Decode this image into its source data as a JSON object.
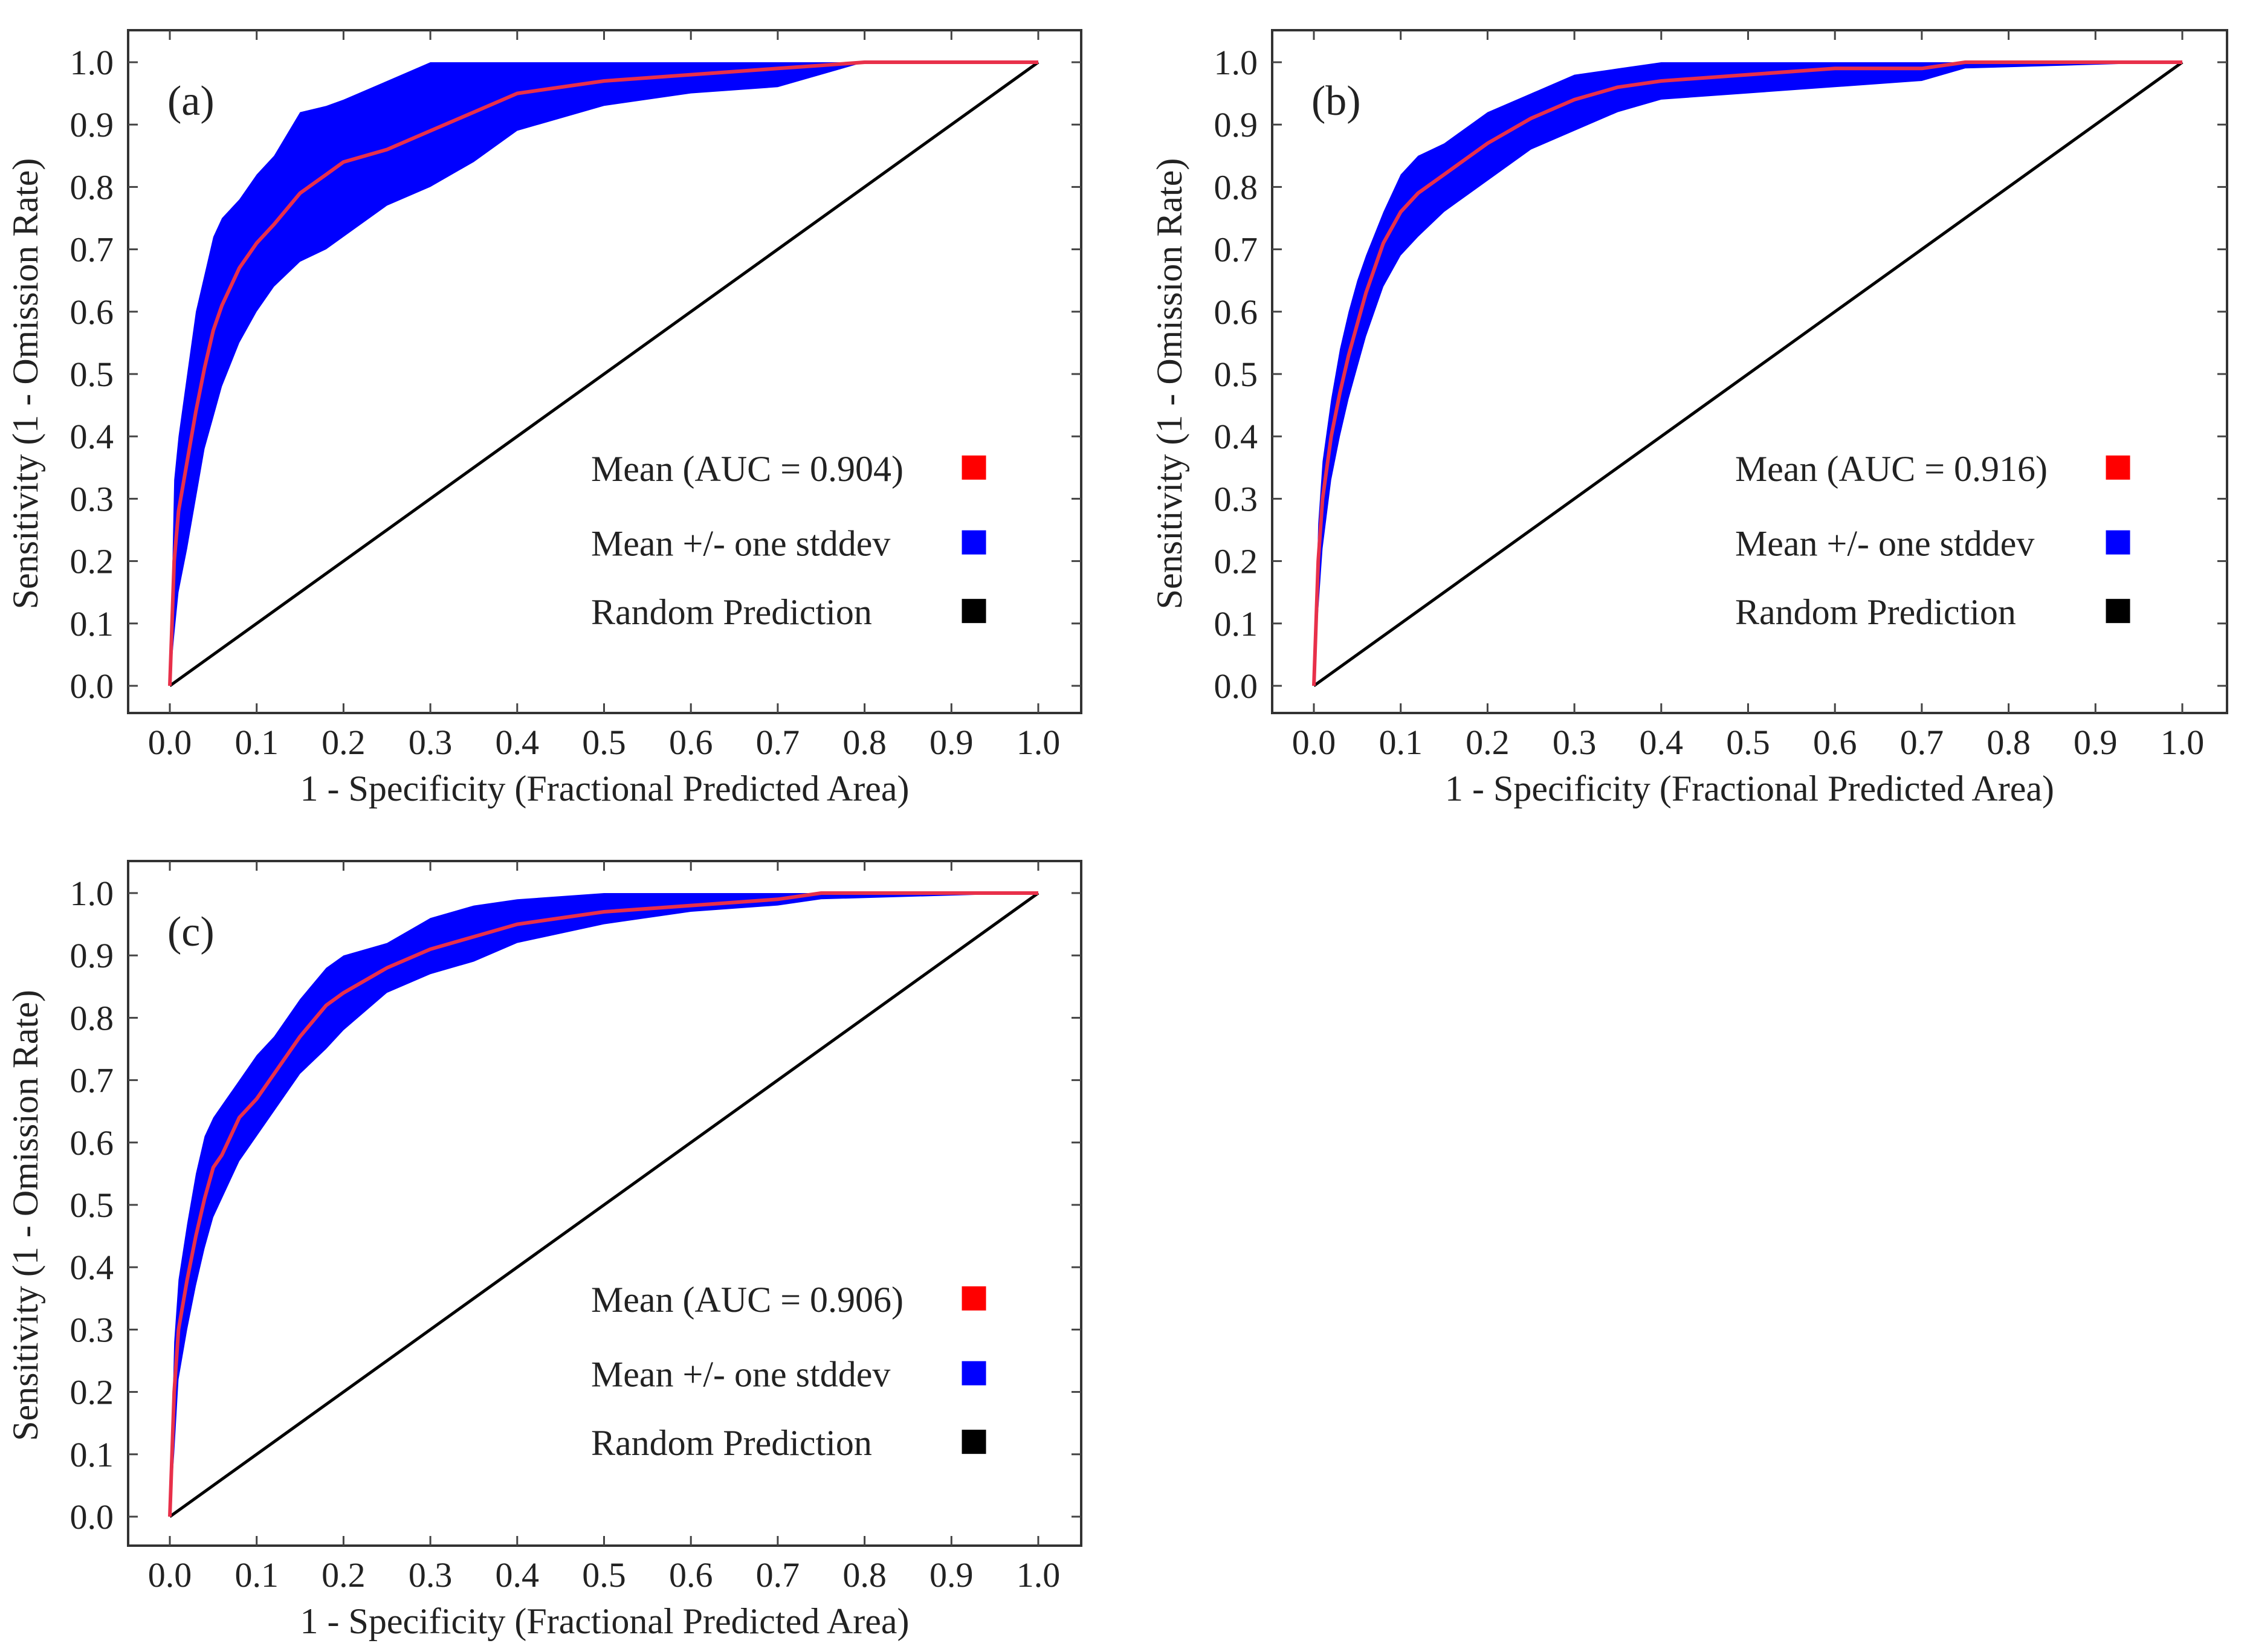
{
  "chart_data": [
    {
      "type": "line",
      "panel_label": "(a)",
      "xlabel": "1 - Specificity (Fractional Predicted Area)",
      "ylabel": "Sensitivity (1 - Omission Rate)",
      "xlim": [
        0,
        1
      ],
      "ylim": [
        0,
        1
      ],
      "xticks": [
        "0.0",
        "0.1",
        "0.2",
        "0.3",
        "0.4",
        "0.5",
        "0.6",
        "0.7",
        "0.8",
        "0.9",
        "1.0"
      ],
      "yticks": [
        "0.0",
        "0.1",
        "0.2",
        "0.3",
        "0.4",
        "0.5",
        "0.6",
        "0.7",
        "0.8",
        "0.9",
        "1.0"
      ],
      "legend": [
        {
          "label": "Mean (AUC = 0.904)",
          "color": "#ff0000"
        },
        {
          "label": "Mean +/- one stddev",
          "color": "#0000ff"
        },
        {
          "label": "Random Prediction",
          "color": "#000000"
        }
      ],
      "series": [
        {
          "name": "Mean",
          "color": "#e8304a",
          "x": [
            0,
            0.005,
            0.01,
            0.02,
            0.03,
            0.04,
            0.05,
            0.06,
            0.08,
            0.1,
            0.12,
            0.15,
            0.18,
            0.2,
            0.25,
            0.3,
            0.35,
            0.4,
            0.5,
            0.6,
            0.7,
            0.75,
            0.8,
            1.0
          ],
          "y": [
            0,
            0.2,
            0.28,
            0.36,
            0.44,
            0.51,
            0.57,
            0.61,
            0.67,
            0.71,
            0.74,
            0.79,
            0.82,
            0.84,
            0.86,
            0.89,
            0.92,
            0.95,
            0.97,
            0.98,
            0.99,
            0.995,
            1.0,
            1.0
          ]
        },
        {
          "name": "Mean + stddev",
          "color": "#0000ff",
          "x": [
            0,
            0.005,
            0.01,
            0.02,
            0.03,
            0.04,
            0.05,
            0.06,
            0.08,
            0.1,
            0.12,
            0.15,
            0.18,
            0.2,
            0.25,
            0.3,
            0.35,
            0.4,
            0.5,
            0.6,
            0.7,
            0.75,
            0.8,
            1.0
          ],
          "y": [
            0,
            0.33,
            0.4,
            0.5,
            0.6,
            0.66,
            0.72,
            0.75,
            0.78,
            0.82,
            0.85,
            0.92,
            0.93,
            0.94,
            0.97,
            1.0,
            1.0,
            1.0,
            1.0,
            1.0,
            1.0,
            1.0,
            1.0,
            1.0
          ]
        },
        {
          "name": "Mean - stddev",
          "color": "#0000ff",
          "x": [
            0,
            0.005,
            0.01,
            0.02,
            0.03,
            0.04,
            0.05,
            0.06,
            0.08,
            0.1,
            0.12,
            0.15,
            0.18,
            0.2,
            0.25,
            0.3,
            0.35,
            0.4,
            0.5,
            0.6,
            0.7,
            0.75,
            0.8,
            1.0
          ],
          "y": [
            0,
            0.08,
            0.15,
            0.22,
            0.3,
            0.38,
            0.43,
            0.48,
            0.55,
            0.6,
            0.64,
            0.68,
            0.7,
            0.72,
            0.77,
            0.8,
            0.84,
            0.89,
            0.93,
            0.95,
            0.96,
            0.98,
            1.0,
            1.0
          ]
        },
        {
          "name": "Random Prediction",
          "color": "#000000",
          "x": [
            0,
            1
          ],
          "y": [
            0,
            1
          ]
        }
      ]
    },
    {
      "type": "line",
      "panel_label": "(b)",
      "xlabel": "1 - Specificity (Fractional Predicted Area)",
      "ylabel": "Sensitivity (1 - Omission Rate)",
      "xlim": [
        0,
        1
      ],
      "ylim": [
        0,
        1
      ],
      "xticks": [
        "0.0",
        "0.1",
        "0.2",
        "0.3",
        "0.4",
        "0.5",
        "0.6",
        "0.7",
        "0.8",
        "0.9",
        "1.0"
      ],
      "yticks": [
        "0.0",
        "0.1",
        "0.2",
        "0.3",
        "0.4",
        "0.5",
        "0.6",
        "0.7",
        "0.8",
        "0.9",
        "1.0"
      ],
      "legend": [
        {
          "label": "Mean (AUC = 0.916)",
          "color": "#ff0000"
        },
        {
          "label": "Mean +/- one stddev",
          "color": "#0000ff"
        },
        {
          "label": "Random Prediction",
          "color": "#000000"
        }
      ],
      "series": [
        {
          "name": "Mean",
          "color": "#e8304a",
          "x": [
            0,
            0.005,
            0.01,
            0.02,
            0.03,
            0.04,
            0.05,
            0.06,
            0.08,
            0.1,
            0.12,
            0.15,
            0.18,
            0.2,
            0.25,
            0.3,
            0.35,
            0.4,
            0.5,
            0.6,
            0.7,
            0.75,
            1.0
          ],
          "y": [
            0,
            0.2,
            0.3,
            0.4,
            0.47,
            0.53,
            0.58,
            0.63,
            0.71,
            0.76,
            0.79,
            0.82,
            0.85,
            0.87,
            0.91,
            0.94,
            0.96,
            0.97,
            0.98,
            0.99,
            0.99,
            1.0,
            1.0
          ]
        },
        {
          "name": "Mean + stddev",
          "color": "#0000ff",
          "x": [
            0,
            0.005,
            0.01,
            0.02,
            0.03,
            0.04,
            0.05,
            0.06,
            0.08,
            0.1,
            0.12,
            0.15,
            0.18,
            0.2,
            0.25,
            0.3,
            0.35,
            0.4,
            0.5,
            0.6,
            0.7,
            0.75,
            1.0
          ],
          "y": [
            0,
            0.26,
            0.36,
            0.46,
            0.54,
            0.6,
            0.65,
            0.69,
            0.76,
            0.82,
            0.85,
            0.87,
            0.9,
            0.92,
            0.95,
            0.98,
            0.99,
            1.0,
            1.0,
            1.0,
            1.0,
            1.0,
            1.0
          ]
        },
        {
          "name": "Mean - stddev",
          "color": "#0000ff",
          "x": [
            0,
            0.005,
            0.01,
            0.02,
            0.03,
            0.04,
            0.05,
            0.06,
            0.08,
            0.1,
            0.12,
            0.15,
            0.18,
            0.2,
            0.25,
            0.3,
            0.35,
            0.4,
            0.5,
            0.6,
            0.7,
            0.75,
            1.0
          ],
          "y": [
            0,
            0.12,
            0.22,
            0.33,
            0.4,
            0.46,
            0.51,
            0.56,
            0.64,
            0.69,
            0.72,
            0.76,
            0.79,
            0.81,
            0.86,
            0.89,
            0.92,
            0.94,
            0.95,
            0.96,
            0.97,
            0.99,
            1.0
          ]
        },
        {
          "name": "Random Prediction",
          "color": "#000000",
          "x": [
            0,
            1
          ],
          "y": [
            0,
            1
          ]
        }
      ]
    },
    {
      "type": "line",
      "panel_label": "(c)",
      "xlabel": "1 - Specificity (Fractional Predicted Area)",
      "ylabel": "Sensitivity (1 - Omission Rate)",
      "xlim": [
        0,
        1
      ],
      "ylim": [
        0,
        1
      ],
      "xticks": [
        "0.0",
        "0.1",
        "0.2",
        "0.3",
        "0.4",
        "0.5",
        "0.6",
        "0.7",
        "0.8",
        "0.9",
        "1.0"
      ],
      "yticks": [
        "0.0",
        "0.1",
        "0.2",
        "0.3",
        "0.4",
        "0.5",
        "0.6",
        "0.7",
        "0.8",
        "0.9",
        "1.0"
      ],
      "legend": [
        {
          "label": "Mean (AUC = 0.906)",
          "color": "#ff0000"
        },
        {
          "label": "Mean +/- one stddev",
          "color": "#0000ff"
        },
        {
          "label": "Random Prediction",
          "color": "#000000"
        }
      ],
      "series": [
        {
          "name": "Mean",
          "color": "#e8304a",
          "x": [
            0,
            0.005,
            0.01,
            0.02,
            0.03,
            0.04,
            0.05,
            0.06,
            0.08,
            0.1,
            0.12,
            0.15,
            0.18,
            0.2,
            0.25,
            0.3,
            0.35,
            0.4,
            0.5,
            0.6,
            0.7,
            0.75,
            1.0
          ],
          "y": [
            0,
            0.2,
            0.3,
            0.38,
            0.45,
            0.51,
            0.56,
            0.58,
            0.64,
            0.67,
            0.71,
            0.77,
            0.82,
            0.84,
            0.88,
            0.91,
            0.93,
            0.95,
            0.97,
            0.98,
            0.99,
            1.0,
            1.0
          ]
        },
        {
          "name": "Mean + stddev",
          "color": "#0000ff",
          "x": [
            0,
            0.005,
            0.01,
            0.02,
            0.03,
            0.04,
            0.05,
            0.06,
            0.08,
            0.1,
            0.12,
            0.15,
            0.18,
            0.2,
            0.25,
            0.3,
            0.35,
            0.4,
            0.5,
            0.6,
            0.7,
            0.75,
            1.0
          ],
          "y": [
            0,
            0.28,
            0.38,
            0.47,
            0.55,
            0.61,
            0.64,
            0.66,
            0.7,
            0.74,
            0.77,
            0.83,
            0.88,
            0.9,
            0.92,
            0.96,
            0.98,
            0.99,
            1.0,
            1.0,
            1.0,
            1.0,
            1.0
          ]
        },
        {
          "name": "Mean - stddev",
          "color": "#0000ff",
          "x": [
            0,
            0.005,
            0.01,
            0.02,
            0.03,
            0.04,
            0.05,
            0.06,
            0.08,
            0.1,
            0.12,
            0.15,
            0.18,
            0.2,
            0.25,
            0.3,
            0.35,
            0.4,
            0.5,
            0.6,
            0.7,
            0.75,
            1.0
          ],
          "y": [
            0,
            0.1,
            0.22,
            0.3,
            0.37,
            0.43,
            0.48,
            0.51,
            0.57,
            0.61,
            0.65,
            0.71,
            0.75,
            0.78,
            0.84,
            0.87,
            0.89,
            0.92,
            0.95,
            0.97,
            0.98,
            0.99,
            1.0
          ]
        },
        {
          "name": "Random Prediction",
          "color": "#000000",
          "x": [
            0,
            1
          ],
          "y": [
            0,
            1
          ]
        }
      ]
    }
  ]
}
